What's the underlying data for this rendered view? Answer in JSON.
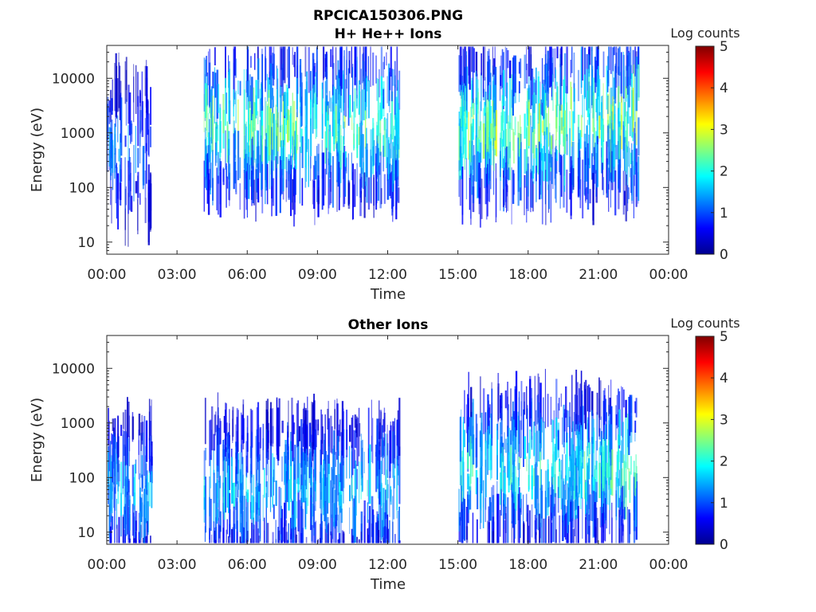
{
  "figure": {
    "title_line1": "RPCICA150306.PNG"
  },
  "chart_data": [
    {
      "type": "heatmap",
      "title": "H+ He++ Ions",
      "xlabel": "Time",
      "ylabel": "Energy (eV)",
      "x_ticks": [
        "00:00",
        "03:00",
        "06:00",
        "09:00",
        "12:00",
        "15:00",
        "18:00",
        "21:00",
        "00:00"
      ],
      "x_range_hours": [
        0,
        24
      ],
      "y_scale": "log",
      "y_ticks": [
        "10",
        "100",
        "1000",
        "10000"
      ],
      "y_range_eV": [
        6,
        40000
      ],
      "colorbar": {
        "label": "Log counts",
        "ticks": [
          "0",
          "1",
          "2",
          "3",
          "4",
          "5"
        ],
        "range": [
          0,
          5
        ],
        "colormap": "jet"
      },
      "data_gaps_hours": [
        [
          1.95,
          4.05
        ],
        [
          12.5,
          15.0
        ],
        [
          22.8,
          24
        ]
      ],
      "intensity_bands": [
        {
          "t0": 0.0,
          "t1": 1.9,
          "e_center_eV": 500,
          "peak_log_counts": 1.5
        },
        {
          "t0": 4.1,
          "t1": 12.5,
          "e_center_eV": 1300,
          "peak_log_counts": 2.8
        },
        {
          "t0": 15.0,
          "t1": 22.7,
          "e_center_eV": 1200,
          "peak_log_counts": 3.0
        },
        {
          "t0": 19.0,
          "t1": 22.7,
          "e_center_eV": 2500,
          "peak_log_counts": 3.0
        }
      ]
    },
    {
      "type": "heatmap",
      "title": "Other Ions",
      "xlabel": "Time",
      "ylabel": "Energy (eV)",
      "x_ticks": [
        "00:00",
        "03:00",
        "06:00",
        "09:00",
        "12:00",
        "15:00",
        "18:00",
        "21:00",
        "00:00"
      ],
      "x_range_hours": [
        0,
        24
      ],
      "y_scale": "log",
      "y_ticks": [
        "10",
        "100",
        "1000",
        "10000"
      ],
      "y_range_eV": [
        6,
        40000
      ],
      "colorbar": {
        "label": "Log counts",
        "ticks": [
          "0",
          "1",
          "2",
          "3",
          "4",
          "5"
        ],
        "range": [
          0,
          5
        ],
        "colormap": "jet"
      },
      "data_gaps_hours": [
        [
          1.95,
          4.05
        ],
        [
          12.5,
          15.0
        ],
        [
          22.8,
          24
        ]
      ],
      "intensity_bands": [
        {
          "t0": 0.0,
          "t1": 1.9,
          "e_center_eV": 60,
          "peak_log_counts": 1.8
        },
        {
          "t0": 4.1,
          "t1": 12.5,
          "e_center_eV": 60,
          "peak_log_counts": 2.0
        },
        {
          "t0": 15.0,
          "t1": 22.7,
          "e_center_eV": 150,
          "peak_log_counts": 2.5
        },
        {
          "t0": 21.5,
          "t1": 22.7,
          "e_center_eV": 150,
          "peak_log_counts": 3.0
        }
      ]
    }
  ]
}
